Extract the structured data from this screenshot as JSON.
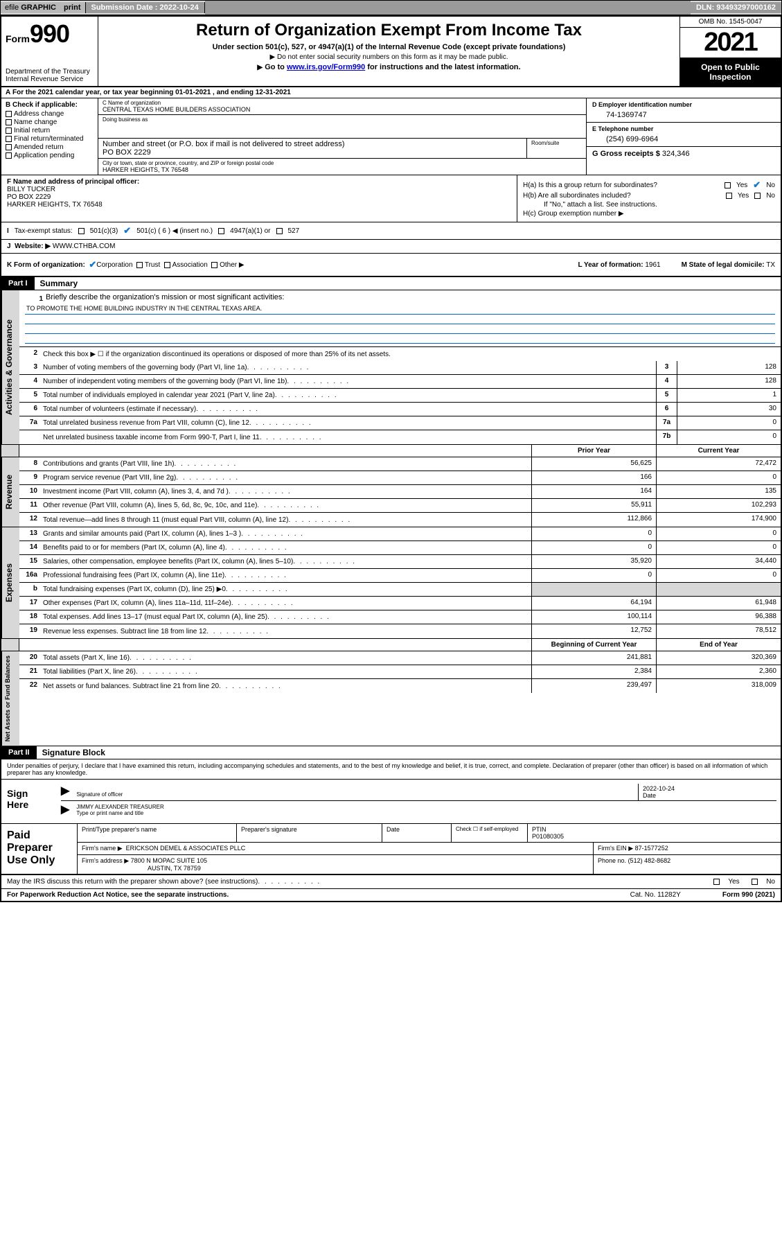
{
  "topbar": {
    "efile_prefix": "efile",
    "efile_label": "GRAPHIC",
    "print": "print",
    "submission_label": "Submission Date : 2022-10-24",
    "dln": "DLN: 93493297000162"
  },
  "header": {
    "form_prefix": "Form",
    "form_number": "990",
    "dept": "Department of the Treasury Internal Revenue Service",
    "title": "Return of Organization Exempt From Income Tax",
    "sub1": "Under section 501(c), 527, or 4947(a)(1) of the Internal Revenue Code (except private foundations)",
    "sub2": "Do not enter social security numbers on this form as it may be made public.",
    "sub3_pre": "Go to ",
    "sub3_link": "www.irs.gov/Form990",
    "sub3_post": " for instructions and the latest information.",
    "omb": "OMB No. 1545-0047",
    "year": "2021",
    "open": "Open to Public Inspection"
  },
  "row_a": "For the 2021 calendar year, or tax year beginning 01-01-2021    , and ending 12-31-2021",
  "col_b": {
    "label": "B Check if applicable:",
    "items": [
      "Address change",
      "Name change",
      "Initial return",
      "Final return/terminated",
      "Amended return",
      "Application pending"
    ]
  },
  "col_c": {
    "name_label": "C Name of organization",
    "name": "CENTRAL TEXAS HOME BUILDERS ASSOCIATION",
    "dba_label": "Doing business as",
    "dba": "",
    "addr_label": "Number and street (or P.O. box if mail is not delivered to street address)",
    "addr": "PO BOX 2229",
    "room_label": "Room/suite",
    "city_label": "City or town, state or province, country, and ZIP or foreign postal code",
    "city": "HARKER HEIGHTS, TX  76548"
  },
  "col_d": {
    "ein_label": "D Employer identification number",
    "ein": "74-1369747",
    "phone_label": "E Telephone number",
    "phone": "(254) 699-6964",
    "gross_label": "G Gross receipts $",
    "gross": "324,346"
  },
  "col_f": {
    "label": "F Name and address of principal officer:",
    "name": "BILLY TUCKER",
    "addr1": "PO BOX 2229",
    "addr2": "HARKER HEIGHTS, TX  76548"
  },
  "col_h": {
    "ha": "H(a)  Is this a group return for subordinates?",
    "hb": "H(b)  Are all subordinates included?",
    "hb_note": "If \"No,\" attach a list. See instructions.",
    "hc": "H(c)  Group exemption number ▶"
  },
  "row_i": {
    "label": "Tax-exempt status:",
    "opts": [
      "501(c)(3)",
      "501(c) ( 6 ) ◀ (insert no.)",
      "4947(a)(1) or",
      "527"
    ]
  },
  "row_j": {
    "label": "Website: ▶",
    "val": "WWW.CTHBA.COM"
  },
  "row_k": {
    "label": "K Form of organization:",
    "opts": [
      "Corporation",
      "Trust",
      "Association",
      "Other ▶"
    ],
    "yof_label": "L Year of formation:",
    "yof": "1961",
    "dom_label": "M State of legal domicile:",
    "dom": "TX"
  },
  "part1": {
    "hdr": "Part I",
    "title": "Summary"
  },
  "mission": {
    "q": "Briefly describe the organization's mission or most significant activities:",
    "text": "TO PROMOTE THE HOME BUILDING INDUSTRY IN THE CENTRAL TEXAS AREA."
  },
  "line2": "Check this box ▶ ☐  if the organization discontinued its operations or disposed of more than 25% of its net assets.",
  "summary_lines": [
    {
      "n": "3",
      "d": "Number of voting members of the governing body (Part VI, line 1a)",
      "b": "3",
      "v": "128"
    },
    {
      "n": "4",
      "d": "Number of independent voting members of the governing body (Part VI, line 1b)",
      "b": "4",
      "v": "128"
    },
    {
      "n": "5",
      "d": "Total number of individuals employed in calendar year 2021 (Part V, line 2a)",
      "b": "5",
      "v": "1"
    },
    {
      "n": "6",
      "d": "Total number of volunteers (estimate if necessary)",
      "b": "6",
      "v": "30"
    },
    {
      "n": "7a",
      "d": "Total unrelated business revenue from Part VIII, column (C), line 12",
      "b": "7a",
      "v": "0"
    },
    {
      "n": "",
      "d": "Net unrelated business taxable income from Form 990-T, Part I, line 11",
      "b": "7b",
      "v": "0"
    }
  ],
  "col_headers": {
    "prior": "Prior Year",
    "current": "Current Year",
    "beg": "Beginning of Current Year",
    "end": "End of Year"
  },
  "revenue": [
    {
      "n": "8",
      "d": "Contributions and grants (Part VIII, line 1h)",
      "p": "56,625",
      "c": "72,472"
    },
    {
      "n": "9",
      "d": "Program service revenue (Part VIII, line 2g)",
      "p": "166",
      "c": "0"
    },
    {
      "n": "10",
      "d": "Investment income (Part VIII, column (A), lines 3, 4, and 7d )",
      "p": "164",
      "c": "135"
    },
    {
      "n": "11",
      "d": "Other revenue (Part VIII, column (A), lines 5, 6d, 8c, 9c, 10c, and 11e)",
      "p": "55,911",
      "c": "102,293"
    },
    {
      "n": "12",
      "d": "Total revenue—add lines 8 through 11 (must equal Part VIII, column (A), line 12)",
      "p": "112,866",
      "c": "174,900"
    }
  ],
  "expenses": [
    {
      "n": "13",
      "d": "Grants and similar amounts paid (Part IX, column (A), lines 1–3 )",
      "p": "0",
      "c": "0"
    },
    {
      "n": "14",
      "d": "Benefits paid to or for members (Part IX, column (A), line 4)",
      "p": "0",
      "c": "0"
    },
    {
      "n": "15",
      "d": "Salaries, other compensation, employee benefits (Part IX, column (A), lines 5–10)",
      "p": "35,920",
      "c": "34,440"
    },
    {
      "n": "16a",
      "d": "Professional fundraising fees (Part IX, column (A), line 11e)",
      "p": "0",
      "c": "0"
    },
    {
      "n": "b",
      "d": "Total fundraising expenses (Part IX, column (D), line 25) ▶0",
      "p": "",
      "c": "",
      "shade": true
    },
    {
      "n": "17",
      "d": "Other expenses (Part IX, column (A), lines 11a–11d, 11f–24e)",
      "p": "64,194",
      "c": "61,948"
    },
    {
      "n": "18",
      "d": "Total expenses. Add lines 13–17 (must equal Part IX, column (A), line 25)",
      "p": "100,114",
      "c": "96,388"
    },
    {
      "n": "19",
      "d": "Revenue less expenses. Subtract line 18 from line 12",
      "p": "12,752",
      "c": "78,512"
    }
  ],
  "netassets": [
    {
      "n": "20",
      "d": "Total assets (Part X, line 16)",
      "p": "241,881",
      "c": "320,369"
    },
    {
      "n": "21",
      "d": "Total liabilities (Part X, line 26)",
      "p": "2,384",
      "c": "2,360"
    },
    {
      "n": "22",
      "d": "Net assets or fund balances. Subtract line 21 from line 20",
      "p": "239,497",
      "c": "318,009"
    }
  ],
  "sidelabels": {
    "ag": "Activities & Governance",
    "rev": "Revenue",
    "exp": "Expenses",
    "na": "Net Assets or Fund Balances"
  },
  "part2": {
    "hdr": "Part II",
    "title": "Signature Block"
  },
  "sig": {
    "text": "Under penalties of perjury, I declare that I have examined this return, including accompanying schedules and statements, and to the best of my knowledge and belief, it is true, correct, and complete. Declaration of preparer (other than officer) is based on all information of which preparer has any knowledge.",
    "sign_here": "Sign Here",
    "sig_label": "Signature of officer",
    "date_label": "Date",
    "date": "2022-10-24",
    "name": "JIMMY ALEXANDER  TREASURER",
    "name_label": "Type or print name and title"
  },
  "paid": {
    "label": "Paid Preparer Use Only",
    "h1": "Print/Type preparer's name",
    "h2": "Preparer's signature",
    "h3": "Date",
    "h4_pre": "Check ☐ if self-employed",
    "h5": "PTIN",
    "ptin": "P01080305",
    "firm_label": "Firm's name    ▶",
    "firm": "ERICKSON DEMEL & ASSOCIATES PLLC",
    "ein_label": "Firm's EIN ▶",
    "ein": "87-1577252",
    "addr_label": "Firm's address ▶",
    "addr1": "7800 N MOPAC SUITE 105",
    "addr2": "AUSTIN, TX  78759",
    "phone_label": "Phone no.",
    "phone": "(512) 482-8682"
  },
  "footer": {
    "discuss": "May the IRS discuss this return with the preparer shown above? (see instructions)",
    "pra": "For Paperwork Reduction Act Notice, see the separate instructions.",
    "cat": "Cat. No. 11282Y",
    "form": "Form 990 (2021)"
  }
}
